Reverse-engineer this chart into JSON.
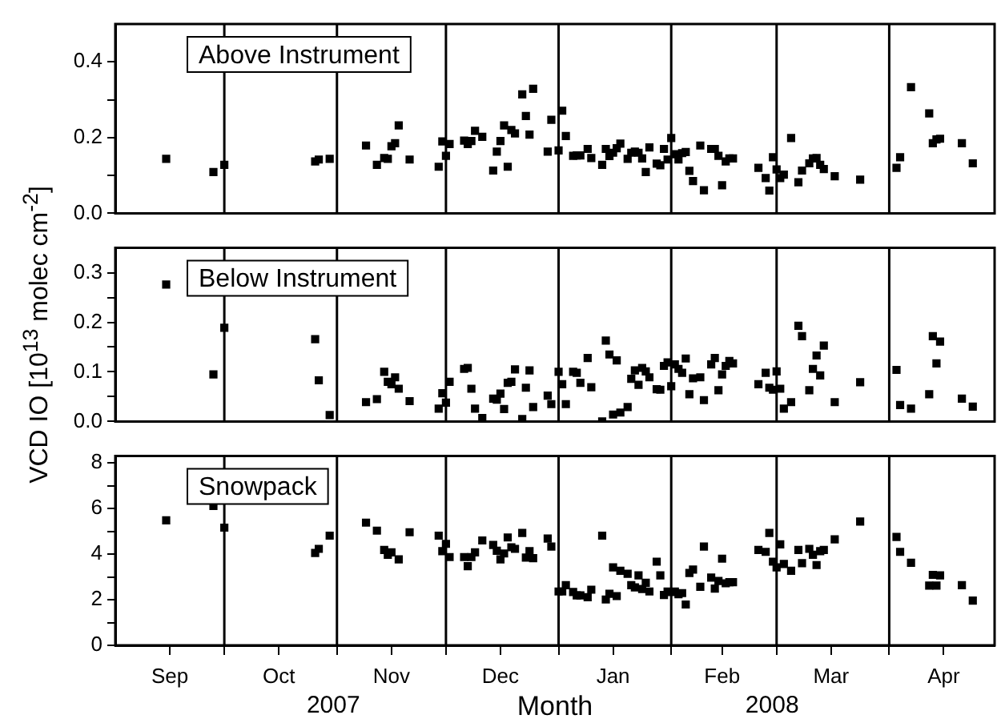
{
  "chart_data": [
    {
      "type": "scatter",
      "title": "Above Instrument",
      "marker": "square",
      "grid": false,
      "legend": false,
      "tick_labels": "y",
      "xlim": [
        "2007-09-01",
        "2008-04-30"
      ],
      "ylim": [
        0,
        0.5
      ],
      "yticks": [
        {
          "value": 0,
          "label": "0.0"
        },
        {
          "value": 0.1,
          "label": null
        },
        0.2,
        {
          "value": 0.3,
          "label": null
        },
        0.4
      ],
      "ref_lines": [
        {
          "axis": "x",
          "value": "2007-10-01",
          "color": "#000000"
        },
        {
          "axis": "x",
          "value": "2007-11-01",
          "color": "#000000"
        },
        {
          "axis": "x",
          "value": "2007-12-01",
          "color": "#000000"
        },
        {
          "axis": "x",
          "value": "2008-01-01",
          "color": "#000000"
        },
        {
          "axis": "x",
          "value": "2008-02-01",
          "color": "#000000"
        },
        {
          "axis": "x",
          "value": "2008-03-01",
          "color": "#000000"
        },
        {
          "axis": "x",
          "value": "2008-04-01",
          "color": "#000000"
        }
      ],
      "series": [
        {
          "color": "#000000",
          "x": [
            "2007-09-15",
            "2007-09-28",
            "2007-10-01",
            "2007-10-26",
            "2007-10-27",
            "2007-10-30",
            "2007-11-09",
            "2007-11-12",
            "2007-11-14",
            "2007-11-15",
            "2007-11-16",
            "2007-11-17",
            "2007-11-18",
            "2007-11-21",
            "2007-11-29",
            "2007-11-30",
            "2007-12-01",
            "2007-12-02",
            "2007-12-06",
            "2007-12-07",
            "2007-12-08",
            "2007-12-09",
            "2007-12-11",
            "2007-12-14",
            "2007-12-15",
            "2007-12-16",
            "2007-12-17",
            "2007-12-18",
            "2007-12-19",
            "2007-12-20",
            "2007-12-22",
            "2007-12-23",
            "2007-12-24",
            "2007-12-25",
            "2007-12-29",
            "2007-12-30",
            "2008-01-01",
            "2008-01-02",
            "2008-01-03",
            "2008-01-05",
            "2008-01-06",
            "2008-01-07",
            "2008-01-09",
            "2008-01-10",
            "2008-01-13",
            "2008-01-14",
            "2008-01-15",
            "2008-01-16",
            "2008-01-17",
            "2008-01-18",
            "2008-01-20",
            "2008-01-21",
            "2008-01-22",
            "2008-01-23",
            "2008-01-24",
            "2008-01-25",
            "2008-01-26",
            "2008-01-28",
            "2008-01-29",
            "2008-01-30",
            "2008-01-31",
            "2008-02-01",
            "2008-02-02",
            "2008-02-03",
            "2008-02-04",
            "2008-02-05",
            "2008-02-06",
            "2008-02-07",
            "2008-02-09",
            "2008-02-10",
            "2008-02-12",
            "2008-02-13",
            "2008-02-14",
            "2008-02-15",
            "2008-02-16",
            "2008-02-17",
            "2008-02-18",
            "2008-02-25",
            "2008-02-27",
            "2008-02-28",
            "2008-02-29",
            "2008-03-01",
            "2008-03-02",
            "2008-03-03",
            "2008-03-05",
            "2008-03-07",
            "2008-03-08",
            "2008-03-10",
            "2008-03-11",
            "2008-03-12",
            "2008-03-13",
            "2008-03-14",
            "2008-03-17",
            "2008-03-24",
            "2008-04-03",
            "2008-04-04",
            "2008-04-07",
            "2008-04-12",
            "2008-04-13",
            "2008-04-14",
            "2008-04-15",
            "2008-04-21",
            "2008-04-24"
          ],
          "values": [
            0.144,
            0.109,
            0.128,
            0.137,
            0.142,
            0.144,
            0.179,
            0.128,
            0.146,
            0.144,
            0.177,
            0.185,
            0.232,
            0.142,
            0.123,
            0.19,
            0.152,
            0.183,
            0.192,
            0.183,
            0.191,
            0.218,
            0.202,
            0.113,
            0.163,
            0.191,
            0.232,
            0.123,
            0.22,
            0.211,
            0.314,
            0.257,
            0.208,
            0.329,
            0.163,
            0.247,
            0.166,
            0.271,
            0.204,
            0.152,
            0.153,
            0.153,
            0.17,
            0.146,
            0.128,
            0.17,
            0.151,
            0.16,
            0.172,
            0.184,
            0.144,
            0.16,
            0.163,
            0.16,
            0.145,
            0.109,
            0.174,
            0.131,
            0.127,
            0.17,
            0.142,
            0.199,
            0.156,
            0.142,
            0.159,
            0.162,
            0.112,
            0.085,
            0.179,
            0.061,
            0.17,
            0.17,
            0.152,
            0.074,
            0.137,
            0.145,
            0.145,
            0.12,
            0.093,
            0.06,
            0.148,
            0.116,
            0.093,
            0.102,
            0.199,
            0.082,
            0.113,
            0.132,
            0.145,
            0.146,
            0.128,
            0.117,
            0.098,
            0.089,
            0.12,
            0.148,
            0.333,
            0.264,
            0.185,
            0.195,
            0.197,
            0.185,
            0.132
          ]
        }
      ]
    },
    {
      "type": "scatter",
      "title": "Below Instrument",
      "ylabel": "VCD IO [10$^{13}$ molec cm$^{-2}$]",
      "marker": "square",
      "grid": false,
      "legend": false,
      "tick_labels": "y",
      "xlim": [
        "2007-09-01",
        "2008-04-30"
      ],
      "ylim": [
        0,
        0.35
      ],
      "yticks": [
        {
          "value": 0,
          "label": "0.0"
        },
        {
          "value": 0.05,
          "label": null
        },
        0.1,
        {
          "value": 0.15,
          "label": null
        },
        0.2,
        {
          "value": 0.25,
          "label": null
        },
        0.3
      ],
      "ref_lines": [
        {
          "axis": "x",
          "value": "2007-10-01",
          "color": "#000000"
        },
        {
          "axis": "x",
          "value": "2007-11-01",
          "color": "#000000"
        },
        {
          "axis": "x",
          "value": "2007-12-01",
          "color": "#000000"
        },
        {
          "axis": "x",
          "value": "2008-01-01",
          "color": "#000000"
        },
        {
          "axis": "x",
          "value": "2008-02-01",
          "color": "#000000"
        },
        {
          "axis": "x",
          "value": "2008-03-01",
          "color": "#000000"
        },
        {
          "axis": "x",
          "value": "2008-04-01",
          "color": "#000000"
        }
      ],
      "series": [
        {
          "color": "#000000",
          "x": [
            "2007-09-15",
            "2007-09-28",
            "2007-10-01",
            "2007-10-26",
            "2007-10-27",
            "2007-10-30",
            "2007-11-09",
            "2007-11-12",
            "2007-11-14",
            "2007-11-15",
            "2007-11-16",
            "2007-11-17",
            "2007-11-18",
            "2007-11-21",
            "2007-11-29",
            "2007-11-30",
            "2007-12-01",
            "2007-12-02",
            "2007-12-06",
            "2007-12-07",
            "2007-12-08",
            "2007-12-09",
            "2007-12-11",
            "2007-12-14",
            "2007-12-15",
            "2007-12-16",
            "2007-12-17",
            "2007-12-18",
            "2007-12-19",
            "2007-12-20",
            "2007-12-22",
            "2007-12-23",
            "2007-12-24",
            "2007-12-25",
            "2007-12-29",
            "2007-12-30",
            "2008-01-01",
            "2008-01-02",
            "2008-01-03",
            "2008-01-05",
            "2008-01-06",
            "2008-01-07",
            "2008-01-09",
            "2008-01-10",
            "2008-01-13",
            "2008-01-14",
            "2008-01-15",
            "2008-01-16",
            "2008-01-17",
            "2008-01-18",
            "2008-01-20",
            "2008-01-21",
            "2008-01-22",
            "2008-01-23",
            "2008-01-24",
            "2008-01-25",
            "2008-01-26",
            "2008-01-28",
            "2008-01-29",
            "2008-01-30",
            "2008-01-31",
            "2008-02-01",
            "2008-02-02",
            "2008-02-03",
            "2008-02-04",
            "2008-02-05",
            "2008-02-06",
            "2008-02-07",
            "2008-02-09",
            "2008-02-10",
            "2008-02-12",
            "2008-02-13",
            "2008-02-14",
            "2008-02-15",
            "2008-02-16",
            "2008-02-17",
            "2008-02-18",
            "2008-02-25",
            "2008-02-27",
            "2008-02-28",
            "2008-02-29",
            "2008-03-01",
            "2008-03-02",
            "2008-03-03",
            "2008-03-05",
            "2008-03-07",
            "2008-03-08",
            "2008-03-10",
            "2008-03-11",
            "2008-03-12",
            "2008-03-13",
            "2008-03-14",
            "2008-03-17",
            "2008-03-24",
            "2008-04-03",
            "2008-04-04",
            "2008-04-07",
            "2008-04-12",
            "2008-04-13",
            "2008-04-14",
            "2008-04-15",
            "2008-04-21",
            "2008-04-24"
          ],
          "values": [
            0.276,
            0.095,
            0.189,
            0.166,
            0.083,
            0.013,
            0.039,
            0.045,
            0.1,
            0.08,
            0.075,
            0.089,
            0.066,
            0.041,
            0.026,
            0.057,
            0.038,
            0.08,
            0.106,
            0.108,
            0.066,
            0.026,
            0.007,
            0.046,
            0.044,
            0.056,
            0.025,
            0.078,
            0.08,
            0.105,
            0.005,
            0.068,
            0.103,
            0.029,
            0.052,
            0.035,
            0.1,
            0.075,
            0.035,
            0.1,
            0.098,
            0.078,
            0.128,
            0.069,
            0.0,
            0.163,
            0.135,
            0.014,
            0.123,
            0.018,
            0.029,
            0.086,
            0.103,
            0.074,
            0.108,
            0.101,
            0.089,
            0.065,
            0.064,
            0.112,
            0.119,
            0.071,
            0.115,
            0.106,
            0.098,
            0.127,
            0.055,
            0.087,
            0.089,
            0.043,
            0.115,
            0.128,
            0.063,
            0.095,
            0.112,
            0.122,
            0.117,
            0.075,
            0.098,
            0.068,
            0.064,
            0.101,
            0.066,
            0.026,
            0.039,
            0.193,
            0.172,
            0.063,
            0.106,
            0.133,
            0.093,
            0.153,
            0.039,
            0.079,
            0.104,
            0.033,
            0.026,
            0.055,
            0.172,
            0.117,
            0.161,
            0.046,
            0.03
          ]
        }
      ]
    },
    {
      "type": "scatter",
      "title": "Snowpack",
      "xlabel": "Month",
      "marker": "square",
      "grid": false,
      "legend": false,
      "annotations": [
        "2007",
        "2008"
      ],
      "xlim": [
        "2007-09-01",
        "2008-04-30"
      ],
      "ylim": [
        0,
        8.3
      ],
      "xticks": [
        {
          "value": "2007-09-16",
          "label": "Sep"
        },
        {
          "value": "2007-10-01",
          "label": null
        },
        {
          "value": "2007-10-16",
          "label": "Oct"
        },
        {
          "value": "2007-11-01",
          "label": null
        },
        {
          "value": "2007-11-16",
          "label": "Nov"
        },
        {
          "value": "2007-12-01",
          "label": null
        },
        {
          "value": "2007-12-16",
          "label": "Dec"
        },
        {
          "value": "2008-01-01",
          "label": null
        },
        {
          "value": "2008-01-16",
          "label": "Jan"
        },
        {
          "value": "2008-02-01",
          "label": null
        },
        {
          "value": "2008-02-15",
          "label": "Feb"
        },
        {
          "value": "2008-03-01",
          "label": null
        },
        {
          "value": "2008-03-16",
          "label": "Mar"
        },
        {
          "value": "2008-04-01",
          "label": null
        },
        {
          "value": "2008-04-16",
          "label": "Apr"
        }
      ],
      "yticks": [
        0,
        {
          "value": 1,
          "label": null
        },
        2,
        {
          "value": 3,
          "label": null
        },
        4,
        {
          "value": 5,
          "label": null
        },
        6,
        {
          "value": 7,
          "label": null
        },
        8
      ],
      "ref_lines": [
        {
          "axis": "x",
          "value": "2007-10-01",
          "color": "#000000"
        },
        {
          "axis": "x",
          "value": "2007-11-01",
          "color": "#000000"
        },
        {
          "axis": "x",
          "value": "2007-12-01",
          "color": "#000000"
        },
        {
          "axis": "x",
          "value": "2008-01-01",
          "color": "#000000"
        },
        {
          "axis": "x",
          "value": "2008-02-01",
          "color": "#000000"
        },
        {
          "axis": "x",
          "value": "2008-03-01",
          "color": "#000000"
        },
        {
          "axis": "x",
          "value": "2008-04-01",
          "color": "#000000"
        }
      ],
      "series": [
        {
          "color": "#000000",
          "x": [
            "2007-09-15",
            "2007-09-28",
            "2007-10-01",
            "2007-10-26",
            "2007-10-27",
            "2007-10-30",
            "2007-11-09",
            "2007-11-12",
            "2007-11-14",
            "2007-11-15",
            "2007-11-16",
            "2007-11-18",
            "2007-11-21",
            "2007-11-29",
            "2007-12-01",
            "2007-11-30",
            "2007-12-02",
            "2007-12-06",
            "2007-12-07",
            "2007-12-08",
            "2007-12-09",
            "2007-12-11",
            "2007-12-14",
            "2007-12-15",
            "2007-12-16",
            "2007-12-17",
            "2007-12-18",
            "2007-12-19",
            "2007-12-20",
            "2007-12-22",
            "2007-12-23",
            "2007-12-24",
            "2007-12-25",
            "2007-12-29",
            "2007-12-30",
            "2008-01-01",
            "2008-01-02",
            "2008-01-03",
            "2008-01-05",
            "2008-01-06",
            "2008-01-07",
            "2008-01-09",
            "2008-01-10",
            "2008-01-13",
            "2008-01-14",
            "2008-01-15",
            "2008-01-16",
            "2008-01-17",
            "2008-01-18",
            "2008-01-20",
            "2008-01-21",
            "2008-01-22",
            "2008-01-23",
            "2008-01-24",
            "2008-01-25",
            "2008-01-26",
            "2008-01-28",
            "2008-01-29",
            "2008-01-30",
            "2008-01-31",
            "2008-02-01",
            "2008-02-02",
            "2008-02-03",
            "2008-02-04",
            "2008-02-05",
            "2008-02-06",
            "2008-02-07",
            "2008-02-09",
            "2008-02-10",
            "2008-02-12",
            "2008-02-13",
            "2008-02-14",
            "2008-02-15",
            "2008-02-16",
            "2008-02-17",
            "2008-02-18",
            "2008-02-25",
            "2008-02-27",
            "2008-02-28",
            "2008-02-29",
            "2008-03-01",
            "2008-03-02",
            "2008-03-03",
            "2008-03-05",
            "2008-03-07",
            "2008-03-08",
            "2008-03-10",
            "2008-03-11",
            "2008-03-12",
            "2008-03-13",
            "2008-03-14",
            "2008-03-17",
            "2008-03-24",
            "2008-04-03",
            "2008-04-04",
            "2008-04-07",
            "2008-04-12",
            "2008-04-13",
            "2008-04-14",
            "2008-04-15",
            "2008-04-21",
            "2008-04-24"
          ],
          "values": [
            5.48,
            6.11,
            5.16,
            4.05,
            4.23,
            4.81,
            5.38,
            5.03,
            4.18,
            3.97,
            4.08,
            3.77,
            4.96,
            4.81,
            4.45,
            4.13,
            3.87,
            3.87,
            3.47,
            3.87,
            4.08,
            4.6,
            4.4,
            4.15,
            3.77,
            4.03,
            4.73,
            4.3,
            4.23,
            4.93,
            3.85,
            4.13,
            3.82,
            4.68,
            4.33,
            2.36,
            2.36,
            2.64,
            2.34,
            2.19,
            2.19,
            2.11,
            2.44,
            4.81,
            2.01,
            2.26,
            3.42,
            2.16,
            3.27,
            3.14,
            2.64,
            2.54,
            3.07,
            2.47,
            2.74,
            2.36,
            3.67,
            3.07,
            2.21,
            2.36,
            2.34,
            2.36,
            2.24,
            2.29,
            1.79,
            3.17,
            3.32,
            2.57,
            4.33,
            2.97,
            2.49,
            2.82,
            3.8,
            2.72,
            2.77,
            2.77,
            4.18,
            4.1,
            4.93,
            3.67,
            3.42,
            4.43,
            3.57,
            3.27,
            4.18,
            3.6,
            4.23,
            3.97,
            3.52,
            4.13,
            4.18,
            4.65,
            5.43,
            4.75,
            4.1,
            3.62,
            2.62,
            3.09,
            2.62,
            3.07,
            2.64,
            1.96
          ]
        }
      ]
    }
  ]
}
